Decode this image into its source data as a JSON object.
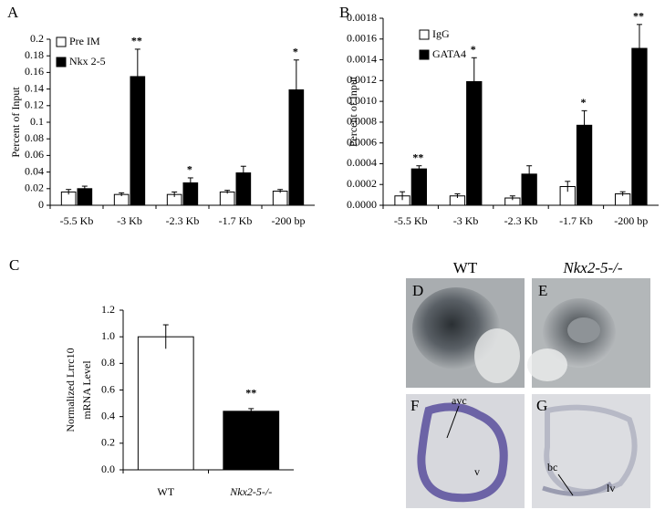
{
  "chart_data": [
    {
      "type": "bar",
      "panel": "A",
      "ylabel": "Percent of Input",
      "categories": [
        "-5.5 Kb",
        "-3 Kb",
        "-2.3 Kb",
        "-1.7 Kb",
        "-200 bp"
      ],
      "series": [
        {
          "name": "Pre IM",
          "color": "#ffffff",
          "values": [
            0.016,
            0.013,
            0.013,
            0.016,
            0.017
          ],
          "errors": [
            0.003,
            0.002,
            0.003,
            0.002,
            0.002
          ]
        },
        {
          "name": "Nkx 2-5",
          "color": "#000000",
          "values": [
            0.02,
            0.155,
            0.027,
            0.039,
            0.139
          ],
          "errors": [
            0.003,
            0.033,
            0.006,
            0.008,
            0.036
          ]
        }
      ],
      "ylim": [
        0,
        0.2
      ],
      "yticks": [
        0,
        0.02,
        0.04,
        0.06,
        0.08,
        0.1,
        0.12,
        0.14,
        0.16,
        0.18,
        0.2
      ],
      "annotations": [
        {
          "text": "**",
          "at": "-3 Kb"
        },
        {
          "text": "*",
          "at": "-2.3 Kb"
        },
        {
          "text": "*",
          "at": "-200 bp"
        }
      ]
    },
    {
      "type": "bar",
      "panel": "B",
      "ylabel": "Percent of Input",
      "categories": [
        "-5.5 Kb",
        "-3 Kb",
        "-2.3 Kb",
        "-1.7 Kb",
        "-200 bp"
      ],
      "series": [
        {
          "name": "IgG",
          "color": "#ffffff",
          "values": [
            9e-05,
            9e-05,
            7e-05,
            0.00018,
            0.00011
          ],
          "errors": [
            4e-05,
            2e-05,
            2e-05,
            5e-05,
            2e-05
          ]
        },
        {
          "name": "GATA4",
          "color": "#000000",
          "values": [
            0.00035,
            0.00119,
            0.0003,
            0.00077,
            0.00151
          ],
          "errors": [
            3e-05,
            0.00023,
            8e-05,
            0.00014,
            0.00023
          ]
        }
      ],
      "ylim": [
        0,
        0.0018
      ],
      "yticks": [
        {
          "value": 0,
          "label": "0.0000"
        },
        {
          "value": 0.0002,
          "label": "0.0002"
        },
        {
          "value": 0.0004,
          "label": "0.0004"
        },
        {
          "value": 0.0006,
          "label": "0.0006"
        },
        {
          "value": 0.0008,
          "label": "0.0008"
        },
        {
          "value": 0.001,
          "label": "0.0010"
        },
        {
          "value": 0.0012,
          "label": "0.0012"
        },
        {
          "value": 0.0014,
          "label": "0.0014"
        },
        {
          "value": 0.0016,
          "label": "0.0016"
        },
        {
          "value": 0.0018,
          "label": "0.0018"
        }
      ],
      "annotations": [
        {
          "text": "**",
          "at": "-5.5 Kb"
        },
        {
          "text": "*",
          "at": "-3 Kb"
        },
        {
          "text": "*",
          "at": "-1.7 Kb"
        },
        {
          "text": "**",
          "at": "-200 bp"
        }
      ]
    },
    {
      "type": "bar",
      "panel": "C",
      "ylabel": [
        "Normalized Lrrc10",
        "mRNA Level"
      ],
      "categories": [
        "WT",
        "Nkx2-5-/-"
      ],
      "values": [
        1.0,
        0.44
      ],
      "errors": [
        0.09,
        0.02
      ],
      "colors": [
        "#ffffff",
        "#000000"
      ],
      "ylim": [
        0,
        1.2
      ],
      "yticks": [
        {
          "value": 0,
          "label": "0.0"
        },
        {
          "value": 0.2,
          "label": "0.2"
        },
        {
          "value": 0.4,
          "label": "0.4"
        },
        {
          "value": 0.6,
          "label": "0.6"
        },
        {
          "value": 0.8,
          "label": "0.8"
        },
        {
          "value": 1,
          "label": "1.0"
        },
        {
          "value": 1.2,
          "label": "1.2"
        }
      ],
      "annotations": [
        {
          "text": "**",
          "at": "Nkx2-5-/-"
        }
      ]
    }
  ],
  "images": {
    "headings": [
      "WT",
      "Nkx2-5-/-"
    ],
    "panels": [
      "D",
      "E",
      "F",
      "G"
    ],
    "labels": [
      "avc",
      "v",
      "bc",
      "lv"
    ]
  }
}
